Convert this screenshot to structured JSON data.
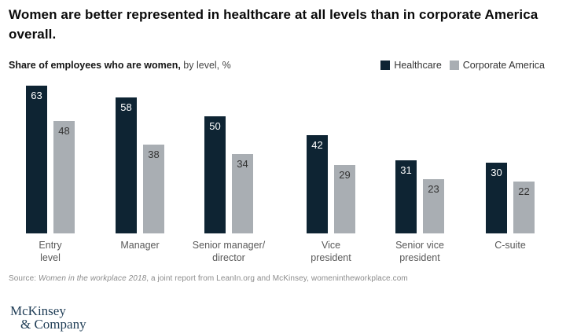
{
  "title": "Women are better represented in healthcare at all levels than in corporate America overall.",
  "subtitle": {
    "bold": "Share of employees who are women,",
    "rest": " by level, %"
  },
  "chart_data": {
    "type": "bar",
    "title": "Share of employees who are women, by level, %",
    "categories": [
      "Entry level",
      "Manager",
      "Senior manager/director",
      "Vice president",
      "Senior vice president",
      "C-suite"
    ],
    "tick_lines": [
      "Entry\nlevel",
      "Manager",
      "Senior manager/\ndirector",
      "Vice\npresident",
      "Senior vice\npresident",
      "C-suite"
    ],
    "series": [
      {
        "name": "Healthcare",
        "color": "#0e2433",
        "value_color": "#ffffff",
        "values": [
          63,
          58,
          50,
          42,
          31,
          30
        ]
      },
      {
        "name": "Corporate America",
        "color": "#a9aeb3",
        "value_color": "#333333",
        "values": [
          48,
          38,
          34,
          29,
          23,
          22
        ]
      }
    ],
    "unit": "%",
    "ylim": [
      0,
      63
    ],
    "grid": false,
    "legend_position": "top-right",
    "value_labels": "inside-top"
  },
  "source": {
    "prefix": "Source: ",
    "italic": "Women in the workplace 2018",
    "rest": ", a joint report from LeanIn.org and McKinsey, womenintheworkplace.com"
  },
  "logo": {
    "line1": "McKinsey",
    "line2": "& Company"
  }
}
